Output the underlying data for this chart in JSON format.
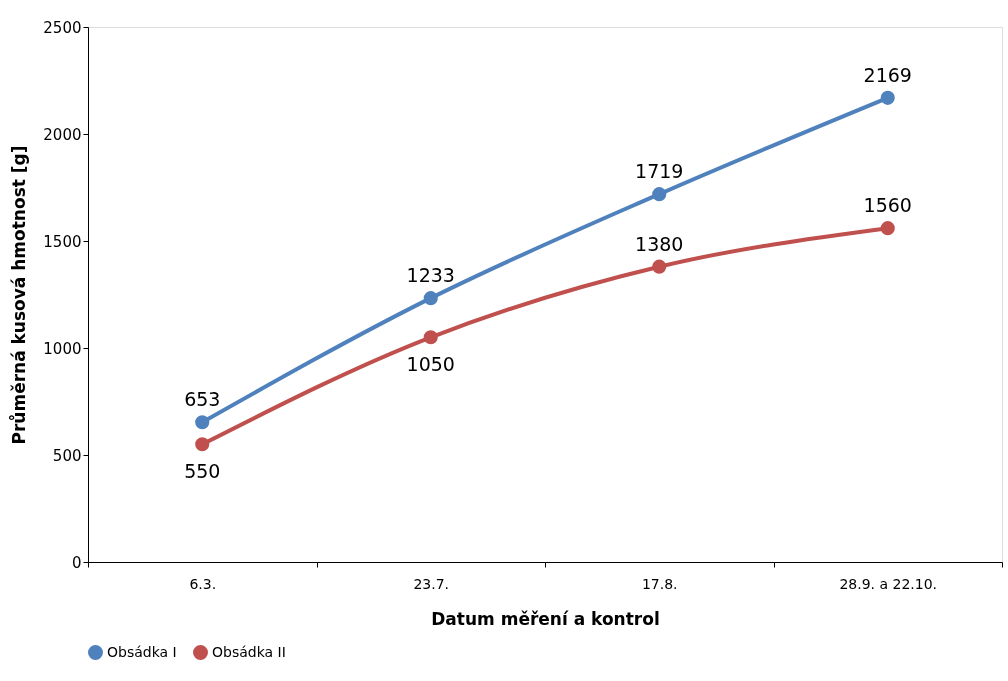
{
  "chart_data": {
    "type": "line",
    "xlabel": "Datum měření a kontrol",
    "ylabel": "Průměrná kusová hmotnost [g]",
    "categories": [
      "6.3.",
      "23.7.",
      "17.8.",
      "28.9. a 22.10."
    ],
    "series": [
      {
        "name": "Obsádka I",
        "color": "#4f81bd",
        "values": [
          653,
          1233,
          1719,
          2169
        ]
      },
      {
        "name": "Obsádka II",
        "color": "#c0504d",
        "values": [
          550,
          1050,
          1380,
          1560
        ]
      }
    ],
    "ylim": [
      0,
      2500
    ],
    "yticks": [
      0,
      500,
      1000,
      1500,
      2000,
      2500
    ],
    "grid": false,
    "legend": "bottom",
    "marker": "circle",
    "data_labels": true
  }
}
